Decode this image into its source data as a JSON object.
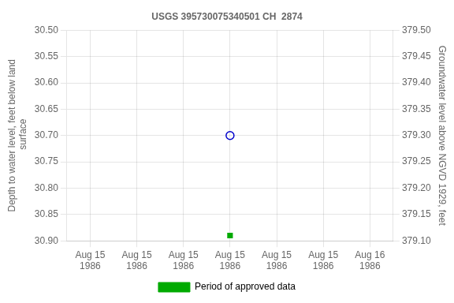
{
  "chart_data": {
    "type": "scatter",
    "title": "USGS 395730075340501 CH  2874",
    "ylabel": "Depth to water level, feet below land\n surface",
    "y2label": "Groundwater level above NGVD 1929, feet",
    "categories": [
      "Aug 15\n1986",
      "Aug 15\n1986",
      "Aug 15\n1986",
      "Aug 15\n1986",
      "Aug 15\n1986",
      "Aug 15\n1986",
      "Aug 16\n1986"
    ],
    "series": [
      {
        "color": "#0000cc",
        "marker": "open_circle",
        "values": [
          null,
          null,
          null,
          30.7,
          null,
          null,
          null
        ]
      },
      {
        "name": "Period of approved data",
        "color": "#00aa00",
        "marker": "square",
        "values": [
          null,
          null,
          null,
          30.89,
          null,
          null,
          null
        ]
      }
    ],
    "ylim": [
      30.9,
      30.5
    ],
    "yticks": [
      {
        "value": 30.5,
        "label": "30.50"
      },
      30.55,
      {
        "value": 30.6,
        "label": "30.60"
      },
      30.65,
      {
        "value": 30.7,
        "label": "30.70"
      },
      30.75,
      {
        "value": 30.8,
        "label": "30.80"
      },
      30.85,
      {
        "value": 30.9,
        "label": "30.90"
      }
    ],
    "y2lim": [
      379.1,
      379.5
    ],
    "y2ticks": [
      {
        "value": 379.5,
        "label": "379.50"
      },
      379.45,
      {
        "value": 379.4,
        "label": "379.40"
      },
      379.35,
      {
        "value": 379.3,
        "label": "379.30"
      },
      379.25,
      {
        "value": 379.2,
        "label": "379.20"
      },
      379.15,
      {
        "value": 379.1,
        "label": "379.10"
      }
    ],
    "grid": true,
    "legend": "bottom"
  }
}
